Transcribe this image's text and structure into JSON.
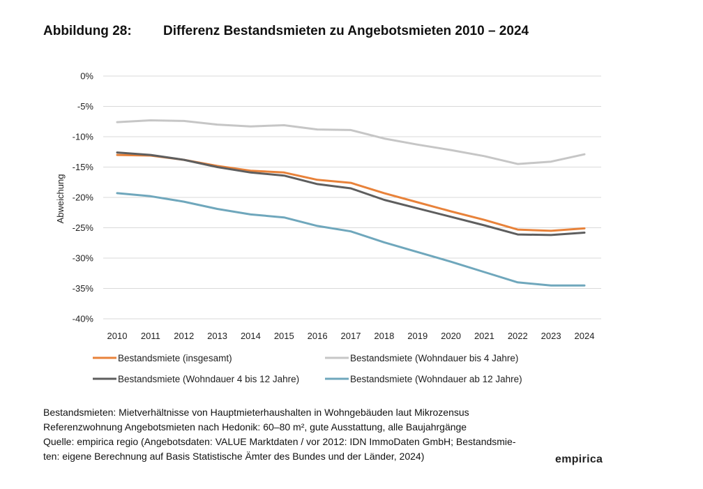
{
  "figure": {
    "number": "Abbildung 28:",
    "title": "Differenz Bestandsmieten zu Angebotsmieten 2010 – 2024"
  },
  "chart_data": {
    "type": "line",
    "title": "Differenz Bestandsmieten zu Angebotsmieten 2010 – 2024",
    "xlabel": "",
    "ylabel": "Abweichung",
    "ylim": [
      -40,
      0
    ],
    "ytick_values": [
      0,
      -5,
      -10,
      -15,
      -20,
      -25,
      -30,
      -35,
      -40
    ],
    "ytick_labels": [
      "0%",
      "-5%",
      "-10%",
      "-15%",
      "-20%",
      "-25%",
      "-30%",
      "-35%",
      "-40%"
    ],
    "grid": true,
    "legend_position": "bottom",
    "categories": [
      "2010",
      "2011",
      "2012",
      "2013",
      "2014",
      "2015",
      "2016",
      "2017",
      "2018",
      "2019",
      "2020",
      "2021",
      "2022",
      "2023",
      "2024"
    ],
    "series": [
      {
        "name": "Bestandsmiete (insgesamt)",
        "color": "#E8823A",
        "values": [
          -13.0,
          -13.1,
          -13.8,
          -14.8,
          -15.6,
          -15.9,
          -17.1,
          -17.6,
          -19.3,
          -20.8,
          -22.3,
          -23.7,
          -25.3,
          -25.5,
          -25.1
        ]
      },
      {
        "name": "Bestandsmiete (Wohndauer bis 4 Jahre)",
        "color": "#C6C6C6",
        "values": [
          -7.6,
          -7.3,
          -7.4,
          -8.0,
          -8.3,
          -8.1,
          -8.8,
          -8.9,
          -10.3,
          -11.3,
          -12.2,
          -13.2,
          -14.5,
          -14.1,
          -12.9
        ]
      },
      {
        "name": "Bestandsmiete (Wohndauer 4 bis 12 Jahre)",
        "color": "#5E5E5E",
        "values": [
          -12.6,
          -13.0,
          -13.8,
          -15.0,
          -15.9,
          -16.4,
          -17.8,
          -18.5,
          -20.4,
          -21.8,
          -23.2,
          -24.6,
          -26.1,
          -26.2,
          -25.8
        ]
      },
      {
        "name": "Bestandsmiete (Wohndauer ab 12 Jahre)",
        "color": "#6FA7BC",
        "values": [
          -19.3,
          -19.8,
          -20.7,
          -21.9,
          -22.8,
          -23.3,
          -24.7,
          -25.6,
          -27.4,
          -29.0,
          -30.6,
          -32.3,
          -34.0,
          -34.5,
          -34.5
        ]
      }
    ]
  },
  "notes": {
    "line1": "Bestandsmieten: Mietverhältnisse von Hauptmieterhaushalten in Wohngebäuden laut Mikrozensus",
    "line2": "Referenzwohnung Angebotsmieten nach Hedonik: 60–80 m², gute Ausstattung, alle Baujahrgänge",
    "line3": "Quelle: empirica regio (Angebotsdaten: VALUE Marktdaten / vor 2012: IDN ImmoDaten GmbH; Bestandsmie-",
    "line4": "ten: eigene Berechnung auf Basis Statistische Ämter des Bundes und der Länder, 2024)"
  },
  "brand": "empirica"
}
